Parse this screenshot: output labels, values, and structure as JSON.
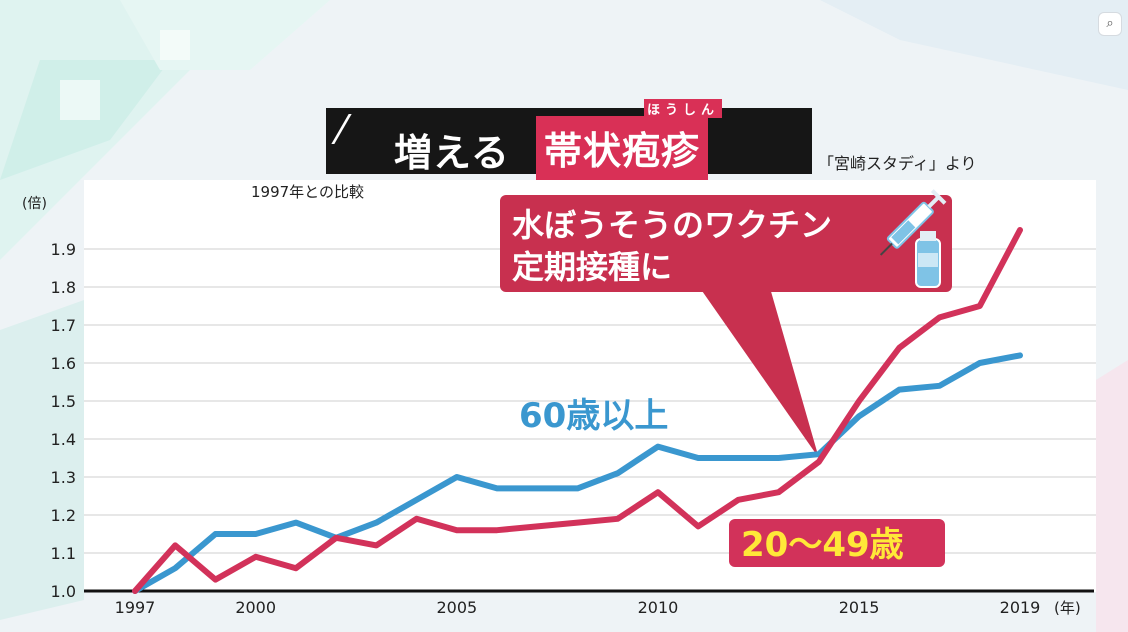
{
  "title": {
    "plain": "増える",
    "highlight": "帯状疱疹",
    "furigana": "ほうしん"
  },
  "source": "「宮崎スタディ」より",
  "colors": {
    "blue": "#3a97cf",
    "red": "#d2325a",
    "yellow": "#ffe838",
    "title_bg": "#161616",
    "highlight_bg": "#d93056"
  },
  "icons": {
    "corner": "zoom-icon",
    "callout": "vaccine-syringe-icon"
  },
  "chart_data": {
    "type": "line",
    "title": "増える帯状疱疹",
    "subtitle": "1997年との比較",
    "ylabel": "(倍)",
    "xlabel": "(年)",
    "ylim": [
      1.0,
      2.0
    ],
    "xlim": [
      1997,
      2019
    ],
    "yticks": [
      "1.0",
      "1.1",
      "1.2",
      "1.3",
      "1.4",
      "1.5",
      "1.6",
      "1.7",
      "1.8",
      "1.9"
    ],
    "xticks": [
      "1997",
      "2000",
      "2005",
      "2010",
      "2015",
      "2019"
    ],
    "grid": true,
    "x": [
      1997,
      1998,
      1999,
      2000,
      2001,
      2002,
      2003,
      2004,
      2005,
      2006,
      2007,
      2008,
      2009,
      2010,
      2011,
      2012,
      2013,
      2014,
      2015,
      2016,
      2017,
      2018,
      2019
    ],
    "series": [
      {
        "name": "60歳以上",
        "color": "#3a97cf",
        "values": [
          1.0,
          1.06,
          1.15,
          1.15,
          1.18,
          1.14,
          1.18,
          1.24,
          1.3,
          1.27,
          1.27,
          1.27,
          1.31,
          1.38,
          1.35,
          1.35,
          1.35,
          1.36,
          1.46,
          1.53,
          1.54,
          1.6,
          1.62
        ]
      },
      {
        "name": "20〜49歳",
        "color": "#d2325a",
        "values": [
          1.0,
          1.12,
          1.03,
          1.09,
          1.06,
          1.14,
          1.12,
          1.19,
          1.16,
          1.16,
          1.17,
          1.18,
          1.19,
          1.26,
          1.17,
          1.24,
          1.26,
          1.34,
          1.5,
          1.64,
          1.72,
          1.75,
          1.95
        ]
      }
    ],
    "annotations": [
      {
        "text_line1": "水ぼうそうのワクチン",
        "text_line2": "定期接種に",
        "x": 2014
      }
    ]
  }
}
